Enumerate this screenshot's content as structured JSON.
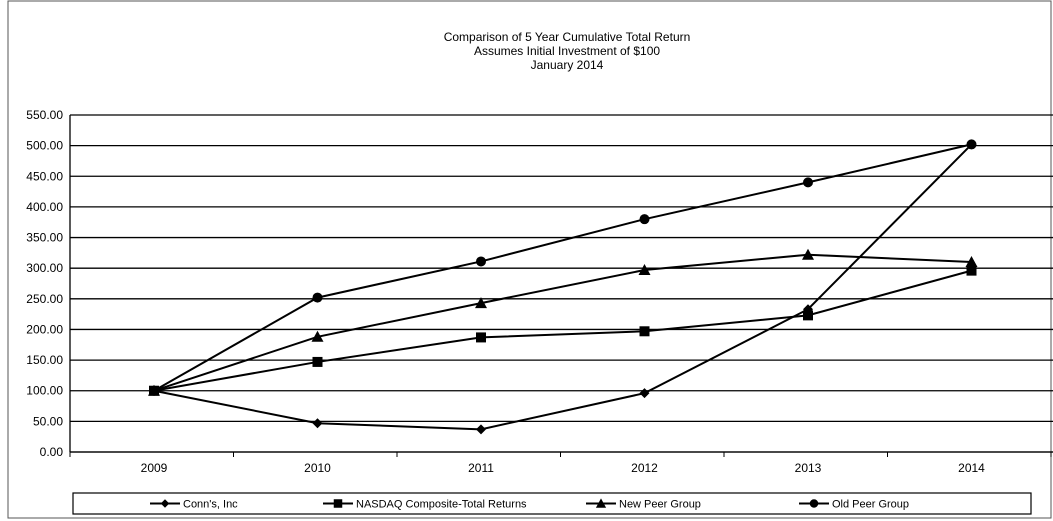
{
  "chart_data": {
    "type": "line",
    "title": "Comparison of 5 Year Cumulative Total Return",
    "subtitle": [
      "Assumes Initial Investment of $100",
      "January 2014"
    ],
    "categories": [
      "2009",
      "2010",
      "2011",
      "2012",
      "2013",
      "2014"
    ],
    "ylim": [
      0,
      550
    ],
    "yticks": [
      "0.00",
      "50.00",
      "100.00",
      "150.00",
      "200.00",
      "250.00",
      "300.00",
      "350.00",
      "400.00",
      "450.00",
      "500.00",
      "550.00"
    ],
    "grid": "horizontal",
    "legend_position": "bottom",
    "series": [
      {
        "name": "Conn's, Inc",
        "marker": "diamond",
        "values": [
          100,
          47,
          37,
          96,
          233,
          502
        ]
      },
      {
        "name": "NASDAQ Composite-Total Returns",
        "marker": "square",
        "values": [
          100,
          147,
          187,
          197,
          223,
          296
        ]
      },
      {
        "name": "New Peer Group",
        "marker": "triangle",
        "values": [
          100,
          188,
          243,
          297,
          322,
          310
        ]
      },
      {
        "name": "Old Peer Group",
        "marker": "circle",
        "values": [
          100,
          252,
          311,
          380,
          440,
          502
        ]
      }
    ],
    "line_color": "#000000"
  }
}
